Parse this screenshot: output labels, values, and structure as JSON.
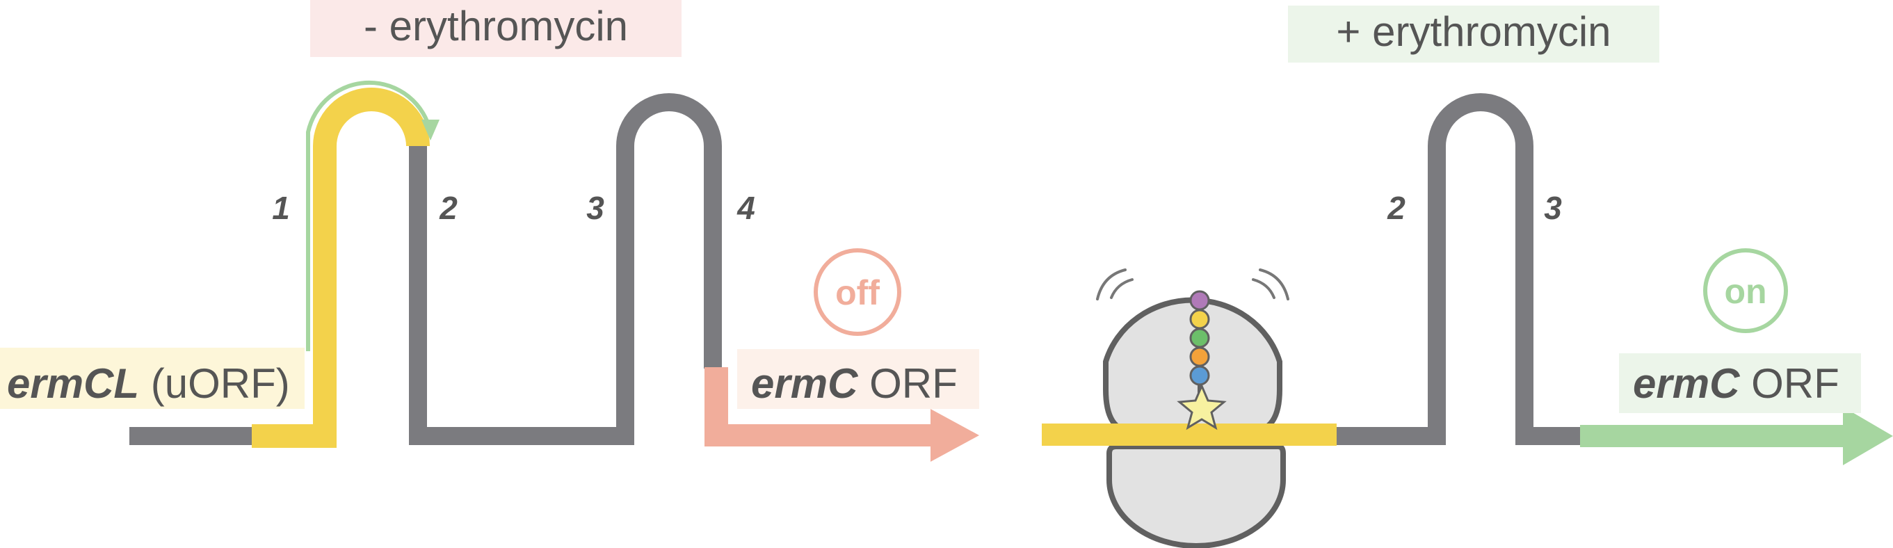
{
  "left_panel": {
    "condition_label": "- erythromycin",
    "uorf_gene": "ermCL",
    "uorf_suffix": " (uORF)",
    "stem_numbers": [
      "1",
      "2",
      "3",
      "4"
    ],
    "status": "off",
    "orf_gene": "ermC",
    "orf_suffix": " ORF"
  },
  "right_panel": {
    "condition_label": "+ erythromycin",
    "stem_numbers": [
      "2",
      "3"
    ],
    "status": "on",
    "orf_gene": "ermC",
    "orf_suffix": " ORF"
  },
  "colors": {
    "mrna": "#7b7b7f",
    "uorf": "#f3d24b",
    "off": "#f1ad9b",
    "on": "#a6d6a0",
    "ribosome_fill": "#e2e2e2",
    "ribosome_stroke": "#606060",
    "label_minus_bg": "#fbe9e8",
    "label_plus_bg": "#ecf5ea",
    "uorf_label_bg": "#fdf6d9",
    "orf_off_bg": "#fdf1ea",
    "orf_on_bg": "#ecf5ea",
    "translation_arrow": "#a6d6a0"
  },
  "nascent_chain_colors": [
    "#b07ab8",
    "#f3d24b",
    "#6cbf6a",
    "#f3a23a",
    "#5b9bd5"
  ],
  "icons": [
    "star-icon",
    "motion-lines-icon"
  ]
}
